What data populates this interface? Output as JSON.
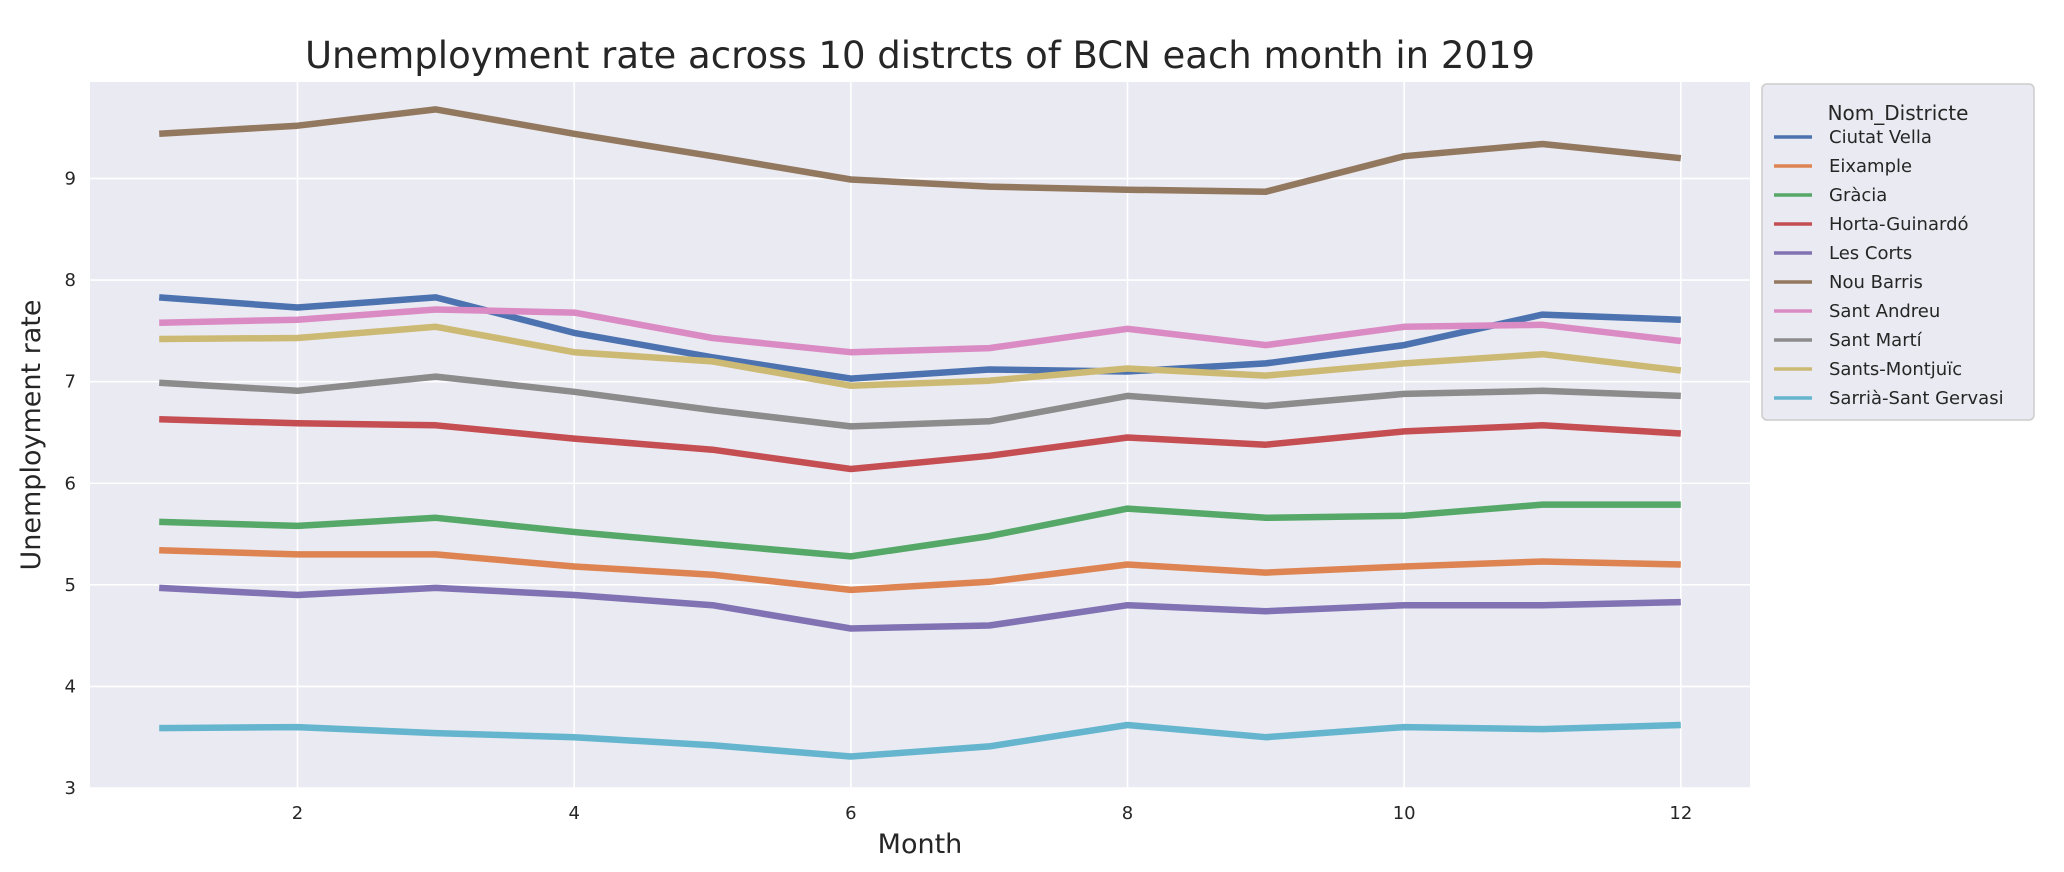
{
  "chart_data": {
    "type": "line",
    "title": "Unemployment rate across 10 distrcts of BCN each month in 2019",
    "xlabel": "Month",
    "ylabel": "Unemployment rate",
    "xlim": [
      0.5,
      12.5
    ],
    "ylim": [
      3,
      9.95
    ],
    "xticks": [
      2,
      4,
      6,
      8,
      10,
      12
    ],
    "yticks": [
      3,
      4,
      5,
      6,
      7,
      8,
      9
    ],
    "grid": true,
    "legend_title": "Nom_Districte",
    "legend_position": "outside-right-top",
    "x": [
      1,
      2,
      3,
      4,
      5,
      6,
      7,
      8,
      9,
      10,
      11,
      12
    ],
    "series": [
      {
        "name": "Ciutat Vella",
        "color": "#4c72b0",
        "values": [
          7.83,
          7.73,
          7.83,
          7.48,
          7.24,
          7.03,
          7.12,
          7.1,
          7.18,
          7.36,
          7.66,
          7.61
        ]
      },
      {
        "name": "Eixample",
        "color": "#dd8452",
        "values": [
          5.34,
          5.3,
          5.3,
          5.18,
          5.1,
          4.95,
          5.03,
          5.2,
          5.12,
          5.18,
          5.23,
          5.2
        ]
      },
      {
        "name": "Gràcia",
        "color": "#55a868",
        "values": [
          5.62,
          5.58,
          5.66,
          5.52,
          5.4,
          5.28,
          5.48,
          5.75,
          5.66,
          5.68,
          5.79,
          5.79
        ]
      },
      {
        "name": "Horta-Guinardó",
        "color": "#c44e52",
        "values": [
          6.63,
          6.59,
          6.57,
          6.44,
          6.33,
          6.14,
          6.27,
          6.45,
          6.38,
          6.51,
          6.57,
          6.49
        ]
      },
      {
        "name": "Les Corts",
        "color": "#8172b3",
        "values": [
          4.97,
          4.9,
          4.97,
          4.9,
          4.8,
          4.57,
          4.6,
          4.8,
          4.74,
          4.8,
          4.8,
          4.83
        ]
      },
      {
        "name": "Nou Barris",
        "color": "#937860",
        "values": [
          9.44,
          9.52,
          9.68,
          9.44,
          9.22,
          8.99,
          8.92,
          8.89,
          8.87,
          9.22,
          9.34,
          9.2
        ]
      },
      {
        "name": "Sant Andreu",
        "color": "#da8bc3",
        "values": [
          7.58,
          7.61,
          7.71,
          7.68,
          7.43,
          7.29,
          7.33,
          7.52,
          7.36,
          7.54,
          7.56,
          7.4
        ]
      },
      {
        "name": "Sant Martí",
        "color": "#8c8c8c",
        "values": [
          6.99,
          6.91,
          7.05,
          6.9,
          6.72,
          6.56,
          6.61,
          6.86,
          6.76,
          6.88,
          6.91,
          6.86
        ]
      },
      {
        "name": "Sants-Montjuïc",
        "color": "#ccb974",
        "values": [
          7.42,
          7.43,
          7.54,
          7.29,
          7.2,
          6.96,
          7.01,
          7.13,
          7.06,
          7.18,
          7.27,
          7.11
        ]
      },
      {
        "name": "Sarrià-Sant Gervasi",
        "color": "#64b5cd",
        "values": [
          3.59,
          3.6,
          3.54,
          3.5,
          3.42,
          3.31,
          3.41,
          3.62,
          3.5,
          3.6,
          3.58,
          3.62
        ]
      }
    ]
  }
}
